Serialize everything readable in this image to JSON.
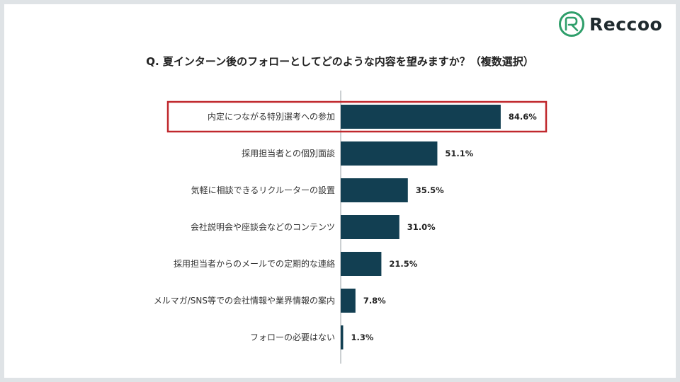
{
  "logo": {
    "text": "Reccoo",
    "color": "#2e9e6a"
  },
  "question": "Q. 夏インターン後のフォローとしてどのような内容を望みますか？（複数選択）",
  "chart_data": {
    "type": "bar",
    "orientation": "horizontal",
    "title": "Q. 夏インターン後のフォローとしてどのような内容を望みますか？（複数選択）",
    "categories": [
      "内定につながる特別選考への参加",
      "採用担当者との個別面談",
      "気軽に相談できるリクルーターの設置",
      "会社説明会や座談会などのコンテンツ",
      "採用担当者からのメールでの定期的な連絡",
      "メルマガ/SNS等での会社情報や業界情報の案内",
      "フォローの必要はない"
    ],
    "values": [
      84.6,
      51.1,
      35.5,
      31.0,
      21.5,
      7.8,
      1.3
    ],
    "value_labels": [
      "84.6%",
      "51.1%",
      "35.5%",
      "31.0%",
      "21.5%",
      "7.8%",
      "1.3%"
    ],
    "unit": "%",
    "xlim": [
      0,
      100
    ],
    "highlight_index": 0,
    "bar_color": "#123f52",
    "highlight_color": "#c0282d",
    "grid": false,
    "legend": "none"
  }
}
